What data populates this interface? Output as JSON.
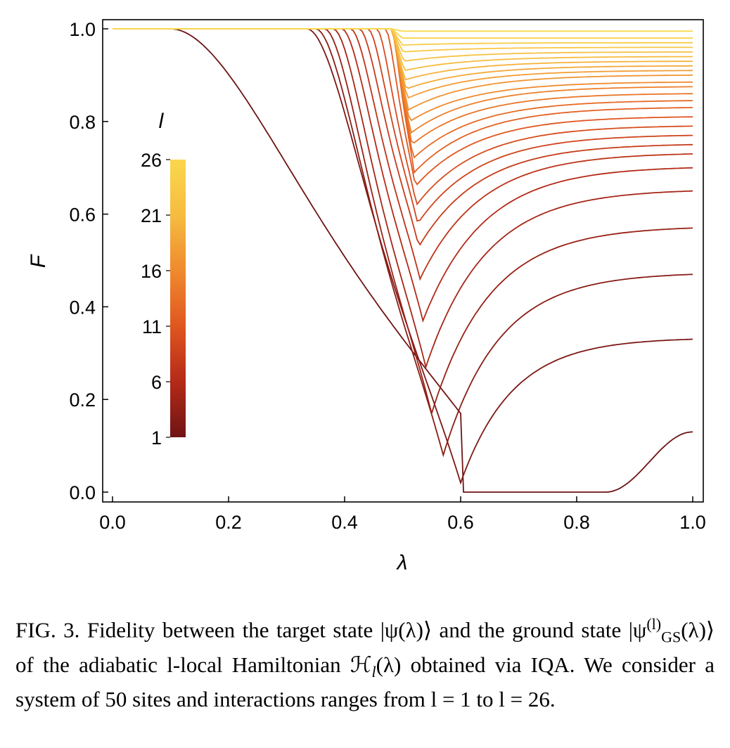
{
  "chart_data": {
    "type": "line",
    "xlabel": "λ",
    "ylabel": "F",
    "xlim": [
      0,
      1
    ],
    "ylim": [
      0,
      1
    ],
    "x_ticks": [
      "0.0",
      "0.2",
      "0.4",
      "0.6",
      "0.8",
      "1.0"
    ],
    "y_ticks": [
      "0.0",
      "0.2",
      "0.4",
      "0.6",
      "0.8",
      "1.0"
    ],
    "grid": false,
    "colorbar": {
      "title": "l",
      "ticks": [
        "1",
        "6",
        "11",
        "16",
        "21",
        "26"
      ],
      "range": [
        1,
        26
      ],
      "colors": [
        "#6e1414",
        "#b42a18",
        "#e0561f",
        "#ef8a2e",
        "#f6bc40",
        "#fad74c"
      ]
    },
    "series_description_values": {
      "l": [
        1,
        2,
        3,
        4,
        5,
        6,
        7,
        8,
        9,
        10,
        11,
        12,
        13,
        14,
        15,
        16,
        17,
        18,
        19,
        20,
        21,
        22,
        23,
        24,
        25,
        26
      ],
      "min_lambda": [
        0.7,
        0.6,
        0.57,
        0.55,
        0.54,
        0.535,
        0.53,
        0.528,
        0.526,
        0.524,
        0.522,
        0.52,
        0.518,
        0.516,
        0.514,
        0.512,
        0.51,
        0.508,
        0.506,
        0.504,
        0.503,
        0.502,
        0.501,
        0.5,
        0.5,
        0.5
      ],
      "min_F": [
        0.0,
        0.02,
        0.08,
        0.17,
        0.27,
        0.37,
        0.46,
        0.53,
        0.58,
        0.62,
        0.66,
        0.69,
        0.72,
        0.75,
        0.775,
        0.8,
        0.825,
        0.85,
        0.87,
        0.89,
        0.91,
        0.93,
        0.95,
        0.965,
        0.98,
        0.995
      ],
      "F_at_1": [
        0.13,
        0.33,
        0.47,
        0.57,
        0.65,
        0.7,
        0.73,
        0.75,
        0.77,
        0.79,
        0.81,
        0.83,
        0.845,
        0.86,
        0.875,
        0.885,
        0.9,
        0.91,
        0.92,
        0.93,
        0.94,
        0.95,
        0.96,
        0.97,
        0.98,
        0.995
      ]
    }
  },
  "caption": {
    "fig_label": "FIG. 3.",
    "text_a": " Fidelity between the target state |ψ(λ)⟩ and the ground state |ψ",
    "sup": "(l)",
    "sub": "GS",
    "text_b": "(λ)⟩ of the adiabatic l-local Hamiltonian ℋ",
    "sub2": "l",
    "text_c": "(λ) obtained via IQA. We consider a system of 50 sites and interactions ranges from l = 1 to l = 26."
  }
}
